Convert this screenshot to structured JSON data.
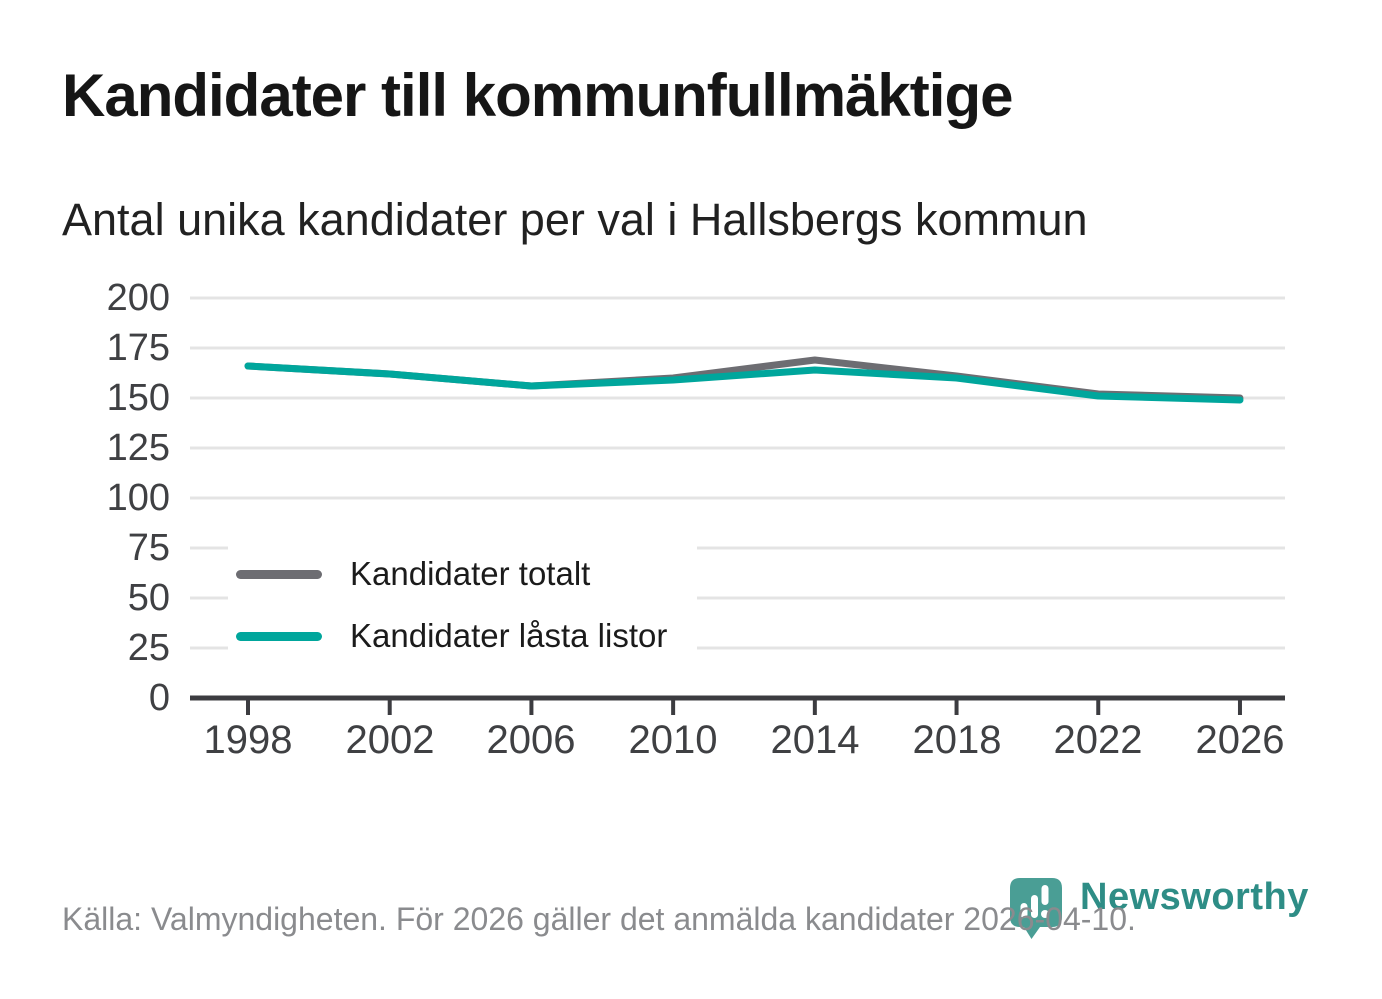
{
  "header": {
    "title": "Kandidater till kommunfullmäktige",
    "subtitle": "Antal unika kandidater per val i Hallsbergs kommun"
  },
  "footer": {
    "source": "Källa: Valmyndigheten. För 2026 gäller det anmälda kandidater 2026-04-10."
  },
  "branding": {
    "wordmark": "Newsworthy",
    "icon": "newsworthy-pin-barchart-icon",
    "mark_color": "#4a9e95",
    "wordmark_color": "#2e8d86"
  },
  "chart_data": {
    "type": "line",
    "title": "Kandidater till kommunfullmäktige",
    "subtitle": "Antal unika kandidater per val i Hallsbergs kommun",
    "categories": [
      "1998",
      "2002",
      "2006",
      "2010",
      "2014",
      "2018",
      "2022",
      "2026"
    ],
    "x_values": [
      1998,
      2002,
      2006,
      2010,
      2014,
      2018,
      2022,
      2026
    ],
    "series": [
      {
        "name": "Kandidater totalt",
        "color": "#6d6d72",
        "values": [
          166,
          162,
          156,
          160,
          169,
          161,
          152,
          150
        ]
      },
      {
        "name": "Kandidater låsta listor",
        "color": "#00a69c",
        "values": [
          166,
          162,
          156,
          159,
          164,
          160,
          151,
          149
        ]
      }
    ],
    "ylim": [
      0,
      200
    ],
    "yticks": [
      0,
      25,
      50,
      75,
      100,
      125,
      150,
      175,
      200
    ],
    "grid": "horizontal",
    "grid_color": "#e4e4e4",
    "axis_color": "#3c3c40",
    "legend_position": "inside-left-bottom"
  }
}
